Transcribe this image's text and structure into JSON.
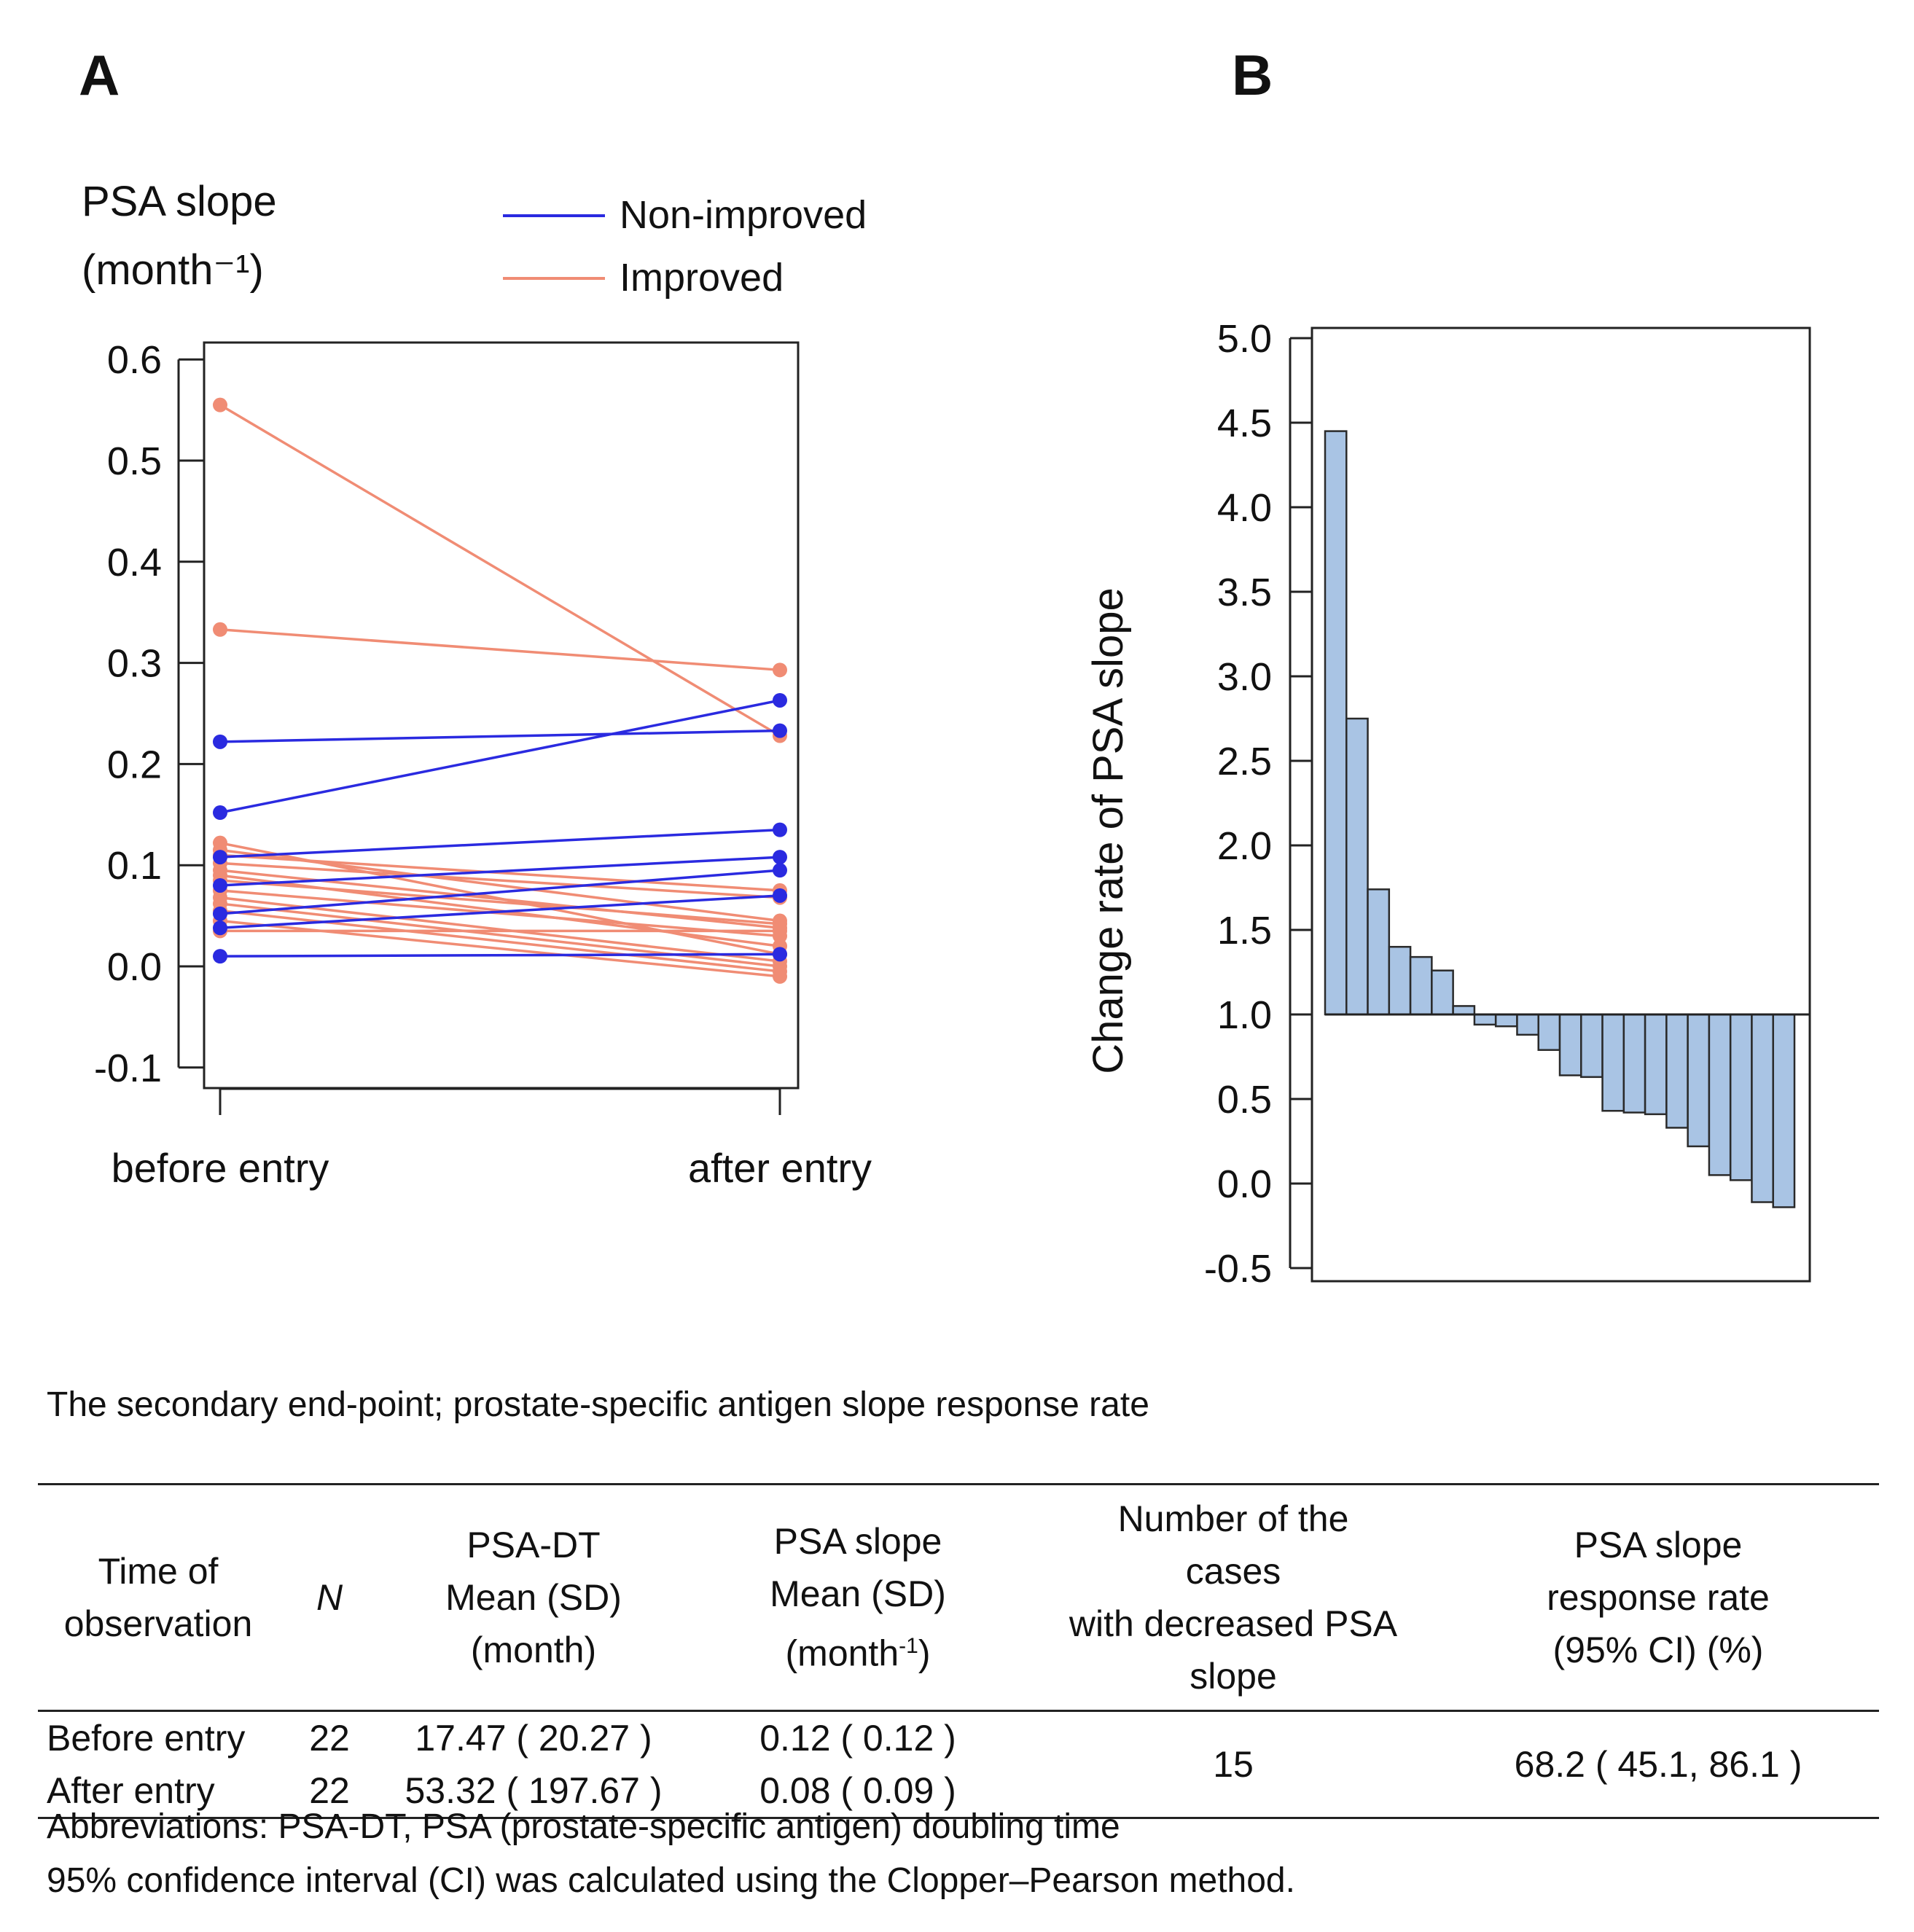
{
  "panels": {
    "a": "A",
    "b": "B"
  },
  "chart_data": [
    {
      "type": "line",
      "panel": "A",
      "ylabel_line1": "PSA slope",
      "ylabel_line2": "(month⁻¹)",
      "categories": [
        "before entry",
        "after entry"
      ],
      "ylim": [
        -0.12,
        0.62
      ],
      "yticks": [
        0.6,
        0.5,
        0.4,
        0.3,
        0.2,
        0.1,
        0.0,
        -0.1
      ],
      "ytick_labels": [
        "0.6",
        "0.5",
        "0.4",
        "0.3",
        "0.2",
        "0.1",
        "0.0",
        "-0.1"
      ],
      "legend": [
        {
          "name": "Non-improved",
          "color": "#2a2ae0"
        },
        {
          "name": "Improved",
          "color": "#f08c74"
        }
      ],
      "colors": {
        "Non-improved": "#2a2ae0",
        "Improved": "#f08c74"
      },
      "series": [
        {
          "group": "Improved",
          "values": [
            0.555,
            0.228
          ]
        },
        {
          "group": "Improved",
          "values": [
            0.333,
            0.293
          ]
        },
        {
          "group": "Improved",
          "values": [
            0.122,
            0.012
          ]
        },
        {
          "group": "Improved",
          "values": [
            0.115,
            0.045
          ]
        },
        {
          "group": "Improved",
          "values": [
            0.11,
            0.075
          ]
        },
        {
          "group": "Improved",
          "values": [
            0.102,
            0.068
          ]
        },
        {
          "group": "Improved",
          "values": [
            0.095,
            0.038
          ]
        },
        {
          "group": "Improved",
          "values": [
            0.09,
            0.02
          ]
        },
        {
          "group": "Improved",
          "values": [
            0.085,
            0.042
          ]
        },
        {
          "group": "Improved",
          "values": [
            0.075,
            0.03
          ]
        },
        {
          "group": "Improved",
          "values": [
            0.068,
            0.005
          ]
        },
        {
          "group": "Improved",
          "values": [
            0.062,
            0.0
          ]
        },
        {
          "group": "Improved",
          "values": [
            0.055,
            -0.005
          ]
        },
        {
          "group": "Improved",
          "values": [
            0.045,
            -0.01
          ]
        },
        {
          "group": "Improved",
          "values": [
            0.035,
            0.035
          ]
        },
        {
          "group": "Non-improved",
          "values": [
            0.222,
            0.233
          ]
        },
        {
          "group": "Non-improved",
          "values": [
            0.152,
            0.263
          ]
        },
        {
          "group": "Non-improved",
          "values": [
            0.108,
            0.135
          ]
        },
        {
          "group": "Non-improved",
          "values": [
            0.08,
            0.108
          ]
        },
        {
          "group": "Non-improved",
          "values": [
            0.052,
            0.095
          ]
        },
        {
          "group": "Non-improved",
          "values": [
            0.038,
            0.07
          ]
        },
        {
          "group": "Non-improved",
          "values": [
            0.01,
            0.012
          ]
        }
      ]
    },
    {
      "type": "bar",
      "panel": "B",
      "ylabel": "Change rate of  PSA slope",
      "ylim": [
        -0.57,
        5.05
      ],
      "baseline": 1.0,
      "yticks": [
        5.0,
        4.5,
        4.0,
        3.5,
        3.0,
        2.5,
        2.0,
        1.5,
        1.0,
        0.5,
        0.0,
        -0.5
      ],
      "ytick_labels": [
        "5.0",
        "4.5",
        "4.0",
        "3.5",
        "3.0",
        "2.5",
        "2.0",
        "1.5",
        "1.0",
        "0.5",
        "0.0",
        "-0.5"
      ],
      "bar_color": "#a9c4e4",
      "values": [
        4.45,
        2.75,
        1.74,
        1.4,
        1.34,
        1.26,
        1.05,
        0.94,
        0.93,
        0.88,
        0.79,
        0.64,
        0.63,
        0.43,
        0.42,
        0.41,
        0.33,
        0.22,
        0.05,
        0.02,
        -0.11,
        -0.14
      ]
    }
  ],
  "table": {
    "title": "The secondary end-point; prostate-specific antigen slope response rate",
    "headers": {
      "time_1": "Time of",
      "time_2": "observation",
      "n": "N",
      "dt_1": "PSA-DT",
      "dt_2": "Mean (SD)",
      "dt_3": "(month)",
      "slope_1": "PSA slope",
      "slope_2": "Mean (SD)",
      "slope_3a": "(month",
      "slope_3sup": "-1",
      "slope_3b": ")",
      "num_1": "Number of the",
      "num_2": "cases",
      "num_3": "with decreased PSA",
      "num_4": "slope",
      "rate_1": "PSA slope",
      "rate_2": "response rate",
      "rate_3": "(95% CI) (%)"
    },
    "rows": [
      {
        "time": "Before entry",
        "n": "22",
        "psa_dt": "17.47 ( 20.27 )",
        "psa_slope": "0.12 ( 0.12 )"
      },
      {
        "time": "After entry",
        "n": "22",
        "psa_dt": "53.32 ( 197.67 )",
        "psa_slope": "0.08 ( 0.09 )"
      }
    ],
    "decreased_cases": "15",
    "response_rate": "68.2 ( 45.1, 86.1 )"
  },
  "footnotes": {
    "abbreviations": "Abbreviations: PSA-DT, PSA (prostate-specific antigen) doubling time",
    "ci_note": "95% confidence interval (CI) was calculated using the Clopper–Pearson method."
  }
}
